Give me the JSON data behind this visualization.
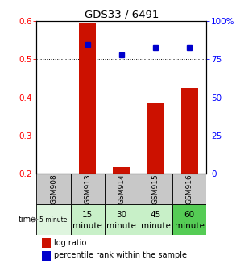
{
  "title": "GDS33 / 6491",
  "samples": [
    "GSM908",
    "GSM913",
    "GSM914",
    "GSM915",
    "GSM916"
  ],
  "time_labels_line1": [
    "5 minute",
    "15",
    "30",
    "45",
    "60"
  ],
  "time_labels_line2": [
    "",
    "minute",
    "minute",
    "minute",
    "minute"
  ],
  "time_bg_colors": [
    "#dff5df",
    "#c8f0c8",
    "#c8f0c8",
    "#c8f0c8",
    "#55cc55"
  ],
  "sample_bg_color": "#c8c8c8",
  "log_ratio": [
    null,
    0.597,
    0.218,
    0.385,
    0.425
  ],
  "percentile_rank": [
    null,
    85.0,
    78.0,
    82.5,
    82.5
  ],
  "ylim_left": [
    0.2,
    0.6
  ],
  "ylim_right": [
    0,
    100
  ],
  "yticks_left": [
    0.2,
    0.3,
    0.4,
    0.5,
    0.6
  ],
  "yticks_right": [
    0,
    25,
    50,
    75,
    100
  ],
  "bar_color": "#cc1100",
  "dot_color": "#0000cc",
  "bar_width": 0.5,
  "legend_labels": [
    "log ratio",
    "percentile rank within the sample"
  ],
  "yticklabels_left": [
    "0.2",
    "0.3",
    "0.4",
    "0.5",
    "0.6"
  ],
  "yticklabels_right": [
    "0",
    "25",
    "50",
    "75",
    "100%"
  ]
}
